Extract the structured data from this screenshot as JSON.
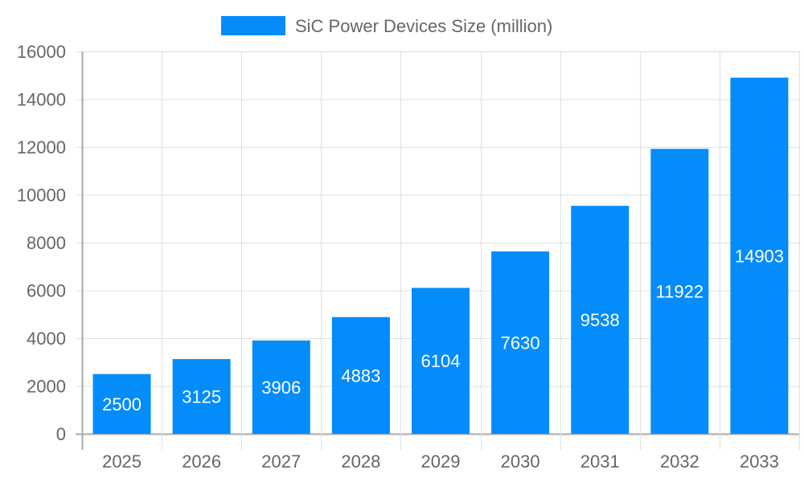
{
  "chart_data": {
    "type": "bar",
    "categories": [
      "2025",
      "2026",
      "2027",
      "2028",
      "2029",
      "2030",
      "2031",
      "2032",
      "2033"
    ],
    "series": [
      {
        "name": "SiC Power Devices Size (million)",
        "values": [
          2500,
          3125,
          3906,
          4883,
          6104,
          7630,
          9538,
          11922,
          14903
        ],
        "color": "#038cfa"
      }
    ],
    "yticks": [
      0,
      2000,
      4000,
      6000,
      8000,
      10000,
      12000,
      14000,
      16000
    ],
    "ylim": [
      0,
      16000
    ],
    "grid": true,
    "legend": "top",
    "data_labels": "inside-center"
  }
}
